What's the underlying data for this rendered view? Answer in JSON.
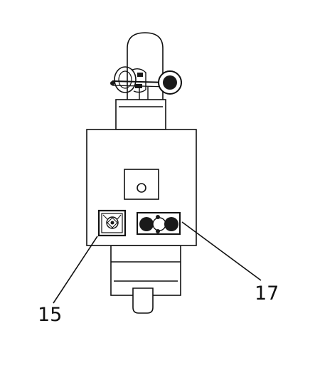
{
  "figure": {
    "callouts": [
      {
        "id": "15",
        "text": "15"
      },
      {
        "id": "17",
        "text": "17"
      }
    ]
  },
  "style": {
    "line_color": "#111111",
    "fill_color": "#ffffff",
    "dark_fill": "#1a1a1a"
  }
}
